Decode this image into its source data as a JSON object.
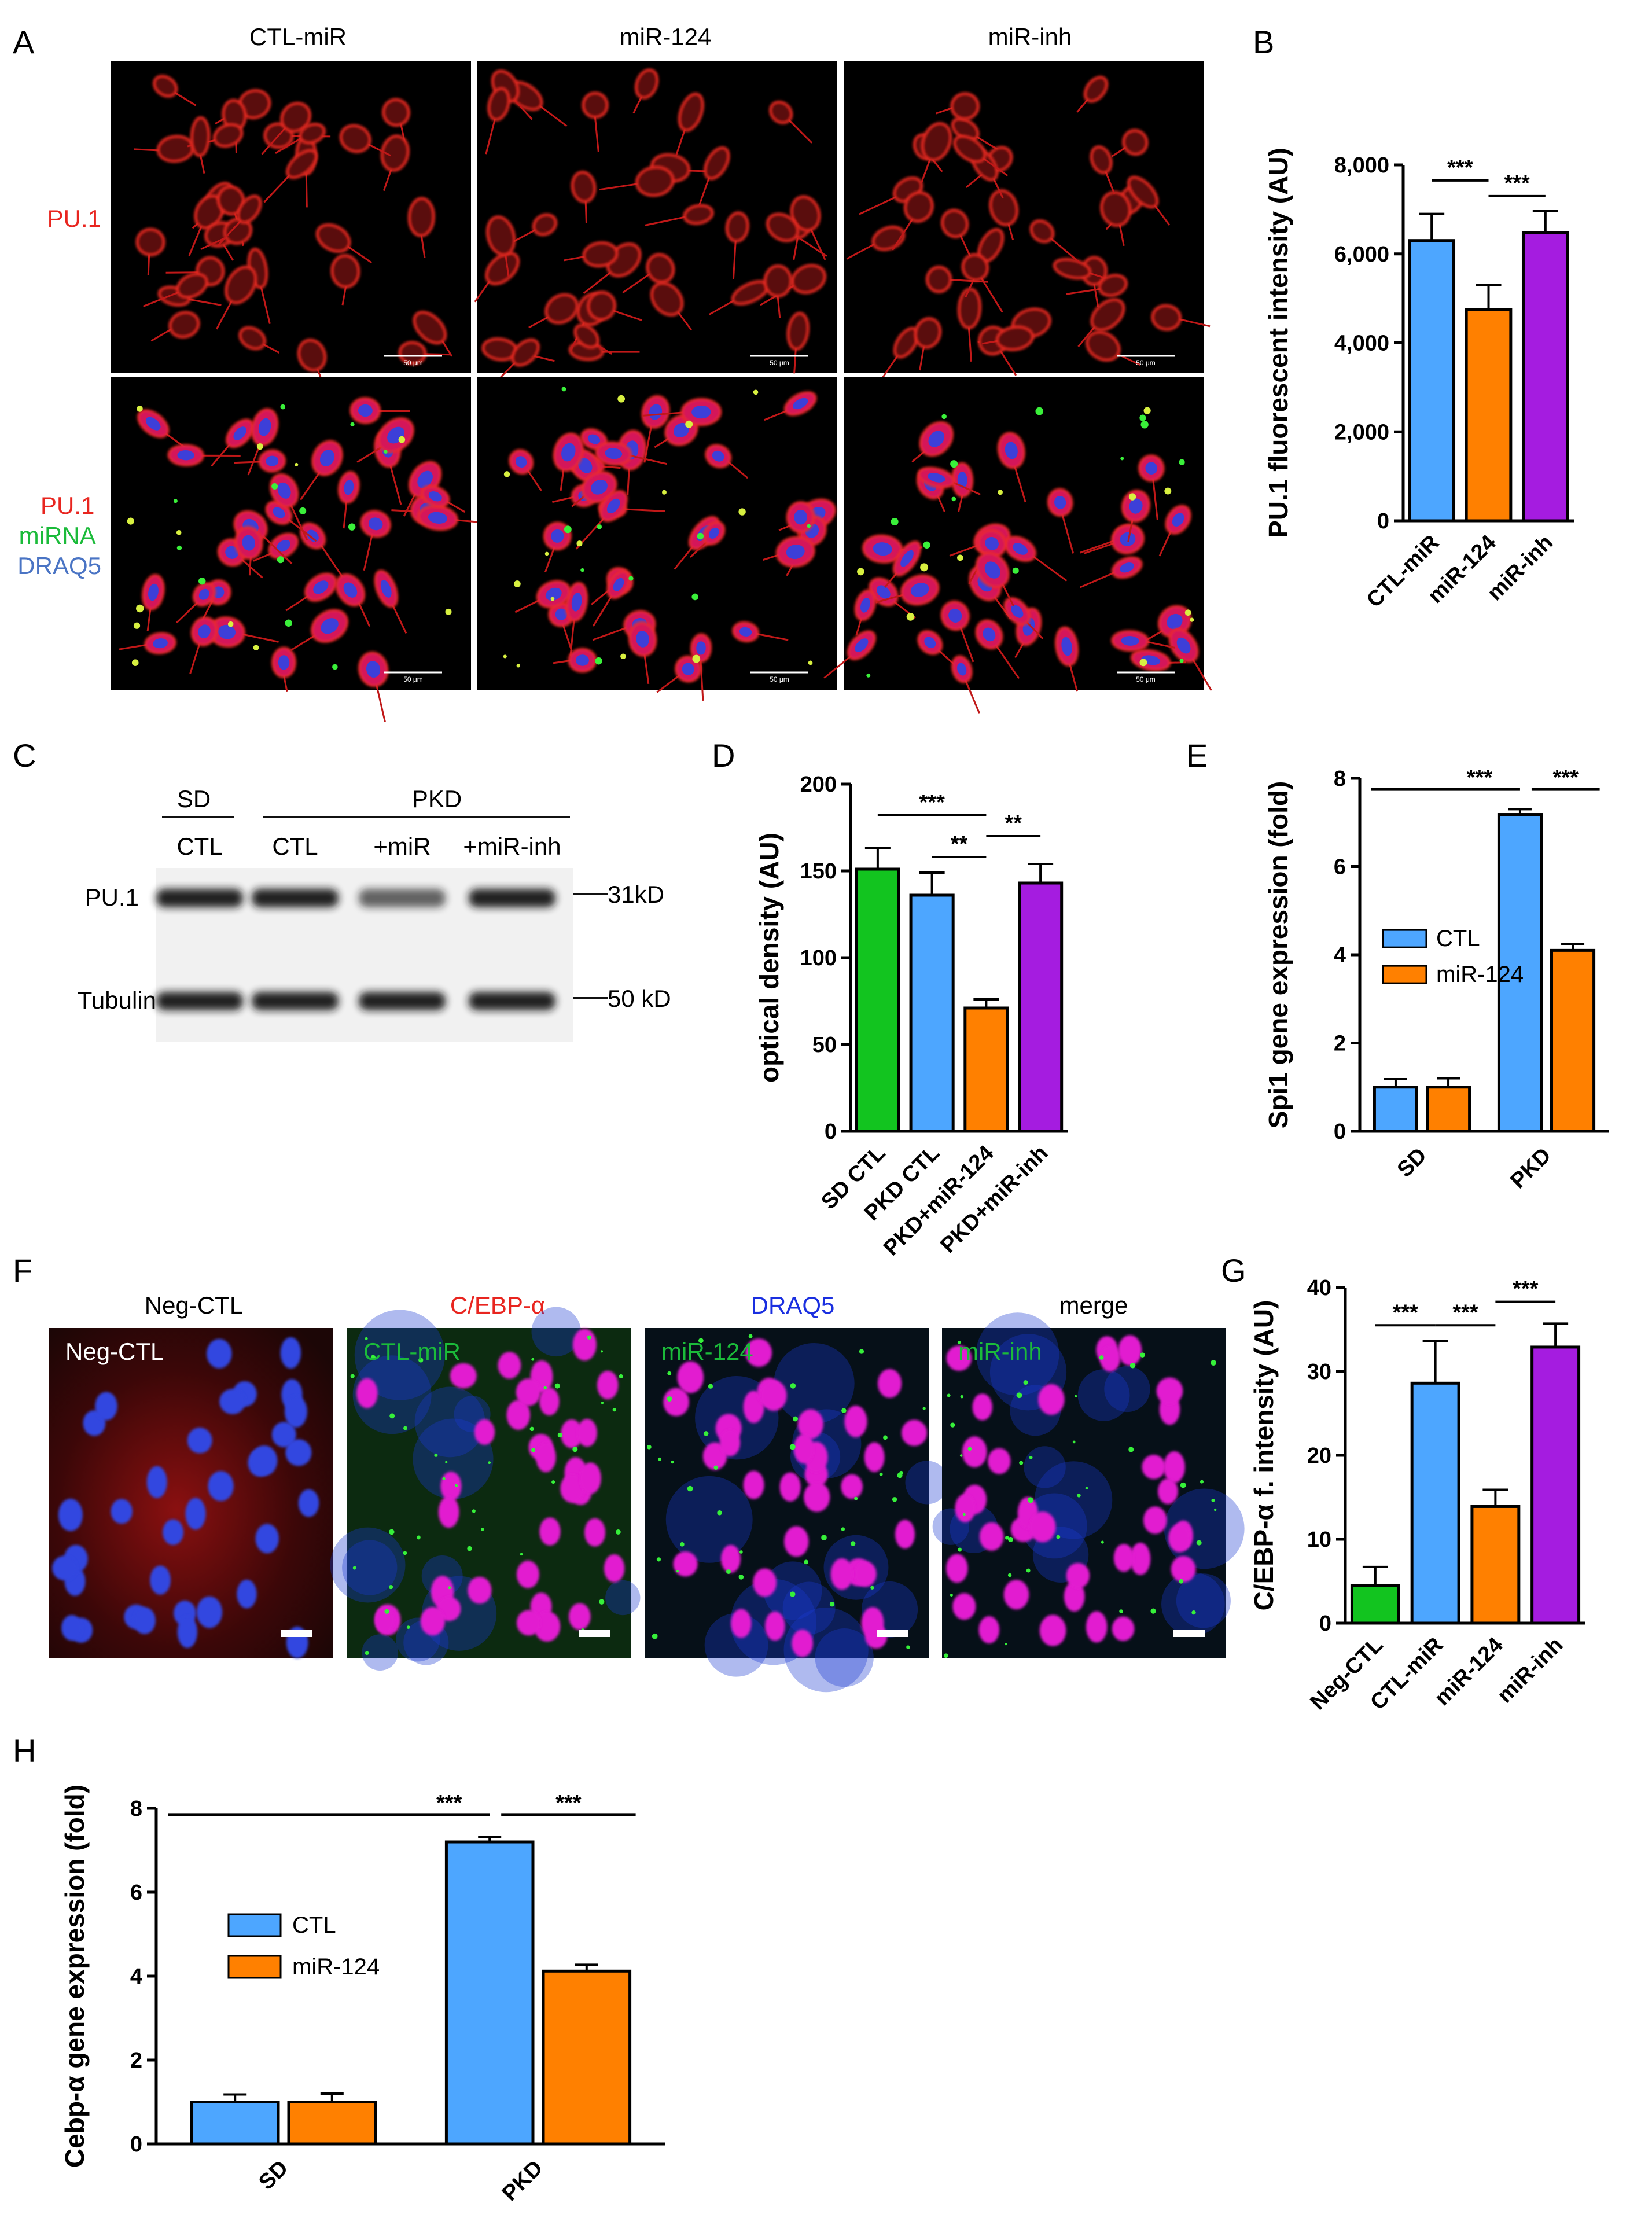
{
  "panels": {
    "A": {
      "letter": "A",
      "columns": [
        "CTL-miR",
        "miR-124",
        "miR-inh"
      ],
      "rows": [
        {
          "labels": [
            {
              "text": "PU.1",
              "color": "#e8251f"
            }
          ]
        },
        {
          "labels": [
            {
              "text": "PU.1",
              "color": "#e8251f"
            },
            {
              "text": "miRNA",
              "color": "#1bbb3a"
            },
            {
              "text": "DRAQ5",
              "color": "#4a74c4"
            }
          ]
        }
      ],
      "scale_bar": "50 μm"
    },
    "C": {
      "letter": "C",
      "group_sd": "SD",
      "group_pkd": "PKD",
      "lanes": [
        "CTL",
        "CTL",
        "+miR",
        "+miR-inh"
      ],
      "rows": [
        "PU.1",
        "Tubulin"
      ],
      "markers": [
        "31kD",
        "50 kD"
      ],
      "band_strength": [
        [
          1.0,
          1.0,
          0.5,
          1.0
        ],
        [
          1.0,
          1.0,
          1.0,
          1.0
        ]
      ]
    },
    "F": {
      "letter": "F",
      "titles": [
        {
          "text": "Neg-CTL",
          "color": "#111111"
        },
        {
          "text": "C/EBP-α",
          "color": "#e8251f"
        },
        {
          "text": "DRAQ5",
          "color": "#1a2fe0"
        },
        {
          "text": "merge",
          "color": "#111111"
        }
      ],
      "insets": [
        {
          "text": "Neg-CTL",
          "color": "#ffffff"
        },
        {
          "text": "CTL-miR",
          "color": "#1bbb3a"
        },
        {
          "text": "miR-124",
          "color": "#1bbb3a"
        },
        {
          "text": "miR-inh",
          "color": "#1bbb3a"
        }
      ]
    }
  },
  "colors": {
    "blue": "#4da6ff",
    "orange": "#ff8000",
    "purple": "#a51ce0",
    "green": "#12c41f"
  },
  "chart_data": [
    {
      "id": "B",
      "letter": "B",
      "type": "bar",
      "ylabel": "PU.1 fluorescent intensity (AU)",
      "ylim": [
        0,
        8000
      ],
      "yticks": [
        0,
        2000,
        4000,
        6000,
        8000
      ],
      "ytick_labels": [
        "0",
        "2,000",
        "4,000",
        "6,000",
        "8,000"
      ],
      "categories": [
        "CTL-miR",
        "miR-124",
        "miR-inh"
      ],
      "values": [
        6300,
        4750,
        6480
      ],
      "errors": [
        600,
        550,
        480
      ],
      "colors": [
        "#4da6ff",
        "#ff8000",
        "#a51ce0"
      ],
      "significance": [
        {
          "from": 0,
          "to": 1,
          "label": "***",
          "y": 7650
        },
        {
          "from": 1,
          "to": 2,
          "label": "***",
          "y": 7300
        }
      ]
    },
    {
      "id": "D",
      "letter": "D",
      "type": "bar",
      "ylabel": "optical density (AU)",
      "ylim": [
        0,
        200
      ],
      "yticks": [
        0,
        50,
        100,
        150,
        200
      ],
      "ytick_labels": [
        "0",
        "50",
        "100",
        "150",
        "200"
      ],
      "categories": [
        "SD CTL",
        "PKD CTL",
        "PKD+miR-124",
        "PKD+miR-inh"
      ],
      "values": [
        151,
        136,
        71,
        143
      ],
      "errors": [
        12,
        13,
        5,
        11
      ],
      "colors": [
        "#12c41f",
        "#4da6ff",
        "#ff8000",
        "#a51ce0"
      ],
      "significance": [
        {
          "from": 0,
          "to": 2,
          "label": "***",
          "y": 182
        },
        {
          "from": 1,
          "to": 2,
          "label": "**",
          "y": 158
        },
        {
          "from": 2,
          "to": 3,
          "label": "**",
          "y": 170
        }
      ]
    },
    {
      "id": "E",
      "letter": "E",
      "type": "bar",
      "ylabel": "Spi1 gene expression (fold)",
      "ylim": [
        0,
        8
      ],
      "yticks": [
        0,
        2,
        4,
        6,
        8
      ],
      "ytick_labels": [
        "0",
        "2",
        "4",
        "6",
        "8"
      ],
      "categories": [
        "SD",
        "PKD"
      ],
      "series": [
        {
          "name": "CTL",
          "values": [
            1.0,
            7.18
          ],
          "errors": [
            0.18,
            0.12
          ],
          "color": "#4da6ff"
        },
        {
          "name": "miR-124",
          "values": [
            1.0,
            4.1
          ],
          "errors": [
            0.2,
            0.15
          ],
          "color": "#ff8000"
        }
      ],
      "legend": "center-left",
      "significance": [
        {
          "label": "***",
          "y": 7.75
        },
        {
          "label": "***",
          "y": 7.75
        }
      ]
    },
    {
      "id": "G",
      "letter": "G",
      "type": "bar",
      "ylabel": "C/EBP-α f. intensity (AU)",
      "ylim": [
        0,
        40
      ],
      "yticks": [
        0,
        10,
        20,
        30,
        40
      ],
      "ytick_labels": [
        "0",
        "10",
        "20",
        "30",
        "40"
      ],
      "categories": [
        "Neg-CTL",
        "CTL-miR",
        "miR-124",
        "miR-inh"
      ],
      "values": [
        4.5,
        28.6,
        13.9,
        32.9
      ],
      "errors": [
        2.2,
        5.0,
        2.0,
        2.8
      ],
      "colors": [
        "#12c41f",
        "#4da6ff",
        "#ff8000",
        "#a51ce0"
      ],
      "significance": [
        {
          "from": 0,
          "to": 1,
          "label": "***",
          "y": 35.5
        },
        {
          "from": 1,
          "to": 2,
          "label": "***",
          "y": 35.5
        },
        {
          "from": 2,
          "to": 3,
          "label": "***",
          "y": 38.3
        }
      ]
    },
    {
      "id": "H",
      "letter": "H",
      "type": "bar",
      "ylabel": "Cebp-α gene expression (fold)",
      "ylim": [
        0,
        8
      ],
      "yticks": [
        0,
        2,
        4,
        6,
        8
      ],
      "ytick_labels": [
        "0",
        "2",
        "4",
        "6",
        "8"
      ],
      "categories": [
        "SD",
        "PKD"
      ],
      "series": [
        {
          "name": "CTL",
          "values": [
            1.0,
            7.2
          ],
          "errors": [
            0.18,
            0.12
          ],
          "color": "#4da6ff"
        },
        {
          "name": "miR-124",
          "values": [
            1.0,
            4.12
          ],
          "errors": [
            0.2,
            0.15
          ],
          "color": "#ff8000"
        }
      ],
      "legend": "center-left",
      "significance": [
        {
          "label": "***",
          "y": 7.85
        },
        {
          "label": "***",
          "y": 7.85
        }
      ]
    }
  ]
}
